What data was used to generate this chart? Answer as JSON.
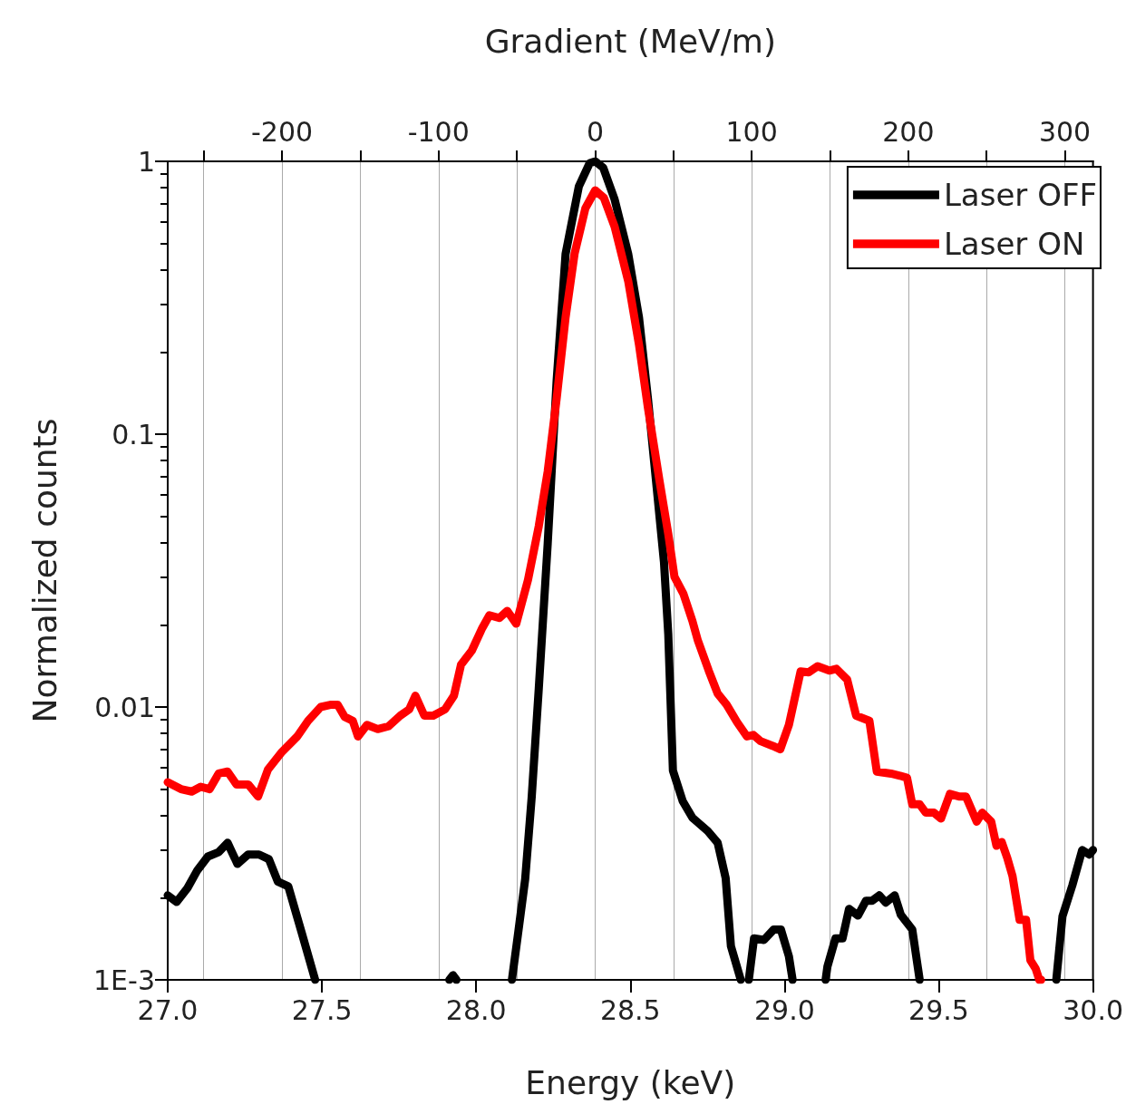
{
  "chart_data": {
    "type": "line",
    "xlabel": "Energy (keV)",
    "ylabel": "Normalized counts",
    "x2label": "Gradient (MeV/m)",
    "xlim": [
      27,
      30
    ],
    "xticks": [
      {
        "value": 27,
        "label": "27.0"
      },
      {
        "value": 27.5,
        "label": "27.5"
      },
      {
        "value": 28,
        "label": "28.0"
      },
      {
        "value": 28.5,
        "label": "28.5"
      },
      {
        "value": 29,
        "label": "29.0"
      },
      {
        "value": 29.5,
        "label": "29.5"
      },
      {
        "value": 30,
        "label": "30.0"
      }
    ],
    "x2lim": [
      -273,
      318
    ],
    "x2ticks": [
      {
        "value": -250,
        "label": null
      },
      -200,
      {
        "value": -150,
        "label": null
      },
      -100,
      {
        "value": -50,
        "label": null
      },
      0,
      {
        "value": 50,
        "label": null
      },
      100,
      {
        "value": 150,
        "label": null
      },
      200,
      {
        "value": 250,
        "label": null
      },
      300
    ],
    "ylim": [
      0.001,
      1
    ],
    "yticks": [
      {
        "value": 0.001,
        "label": "1E-3"
      },
      0.01,
      0.1,
      1
    ],
    "log": "y",
    "grid": "x",
    "legend": "top right",
    "line_style": "solid",
    "marker": "none",
    "series": [
      {
        "name": "Laser OFF",
        "color": "#000000",
        "x": [
          27.0,
          27.029,
          27.064,
          27.096,
          27.13,
          27.165,
          27.194,
          27.226,
          27.261,
          27.296,
          27.328,
          27.357,
          27.391,
          27.435,
          27.478,
          27.7,
          27.913,
          27.925,
          27.936,
          28.0,
          28.116,
          28.136,
          28.159,
          28.18,
          28.203,
          28.232,
          28.261,
          28.29,
          28.333,
          28.368,
          28.386,
          28.412,
          28.449,
          28.493,
          28.528,
          28.557,
          28.586,
          28.609,
          28.623,
          28.638,
          28.67,
          28.701,
          28.751,
          28.783,
          28.809,
          28.826,
          28.858,
          28.87,
          28.884,
          28.901,
          28.933,
          28.965,
          28.988,
          29.014,
          29.026,
          29.08,
          29.133,
          29.139,
          29.165,
          29.188,
          29.209,
          29.238,
          29.264,
          29.284,
          29.307,
          29.328,
          29.357,
          29.377,
          29.414,
          29.438,
          29.6,
          29.881,
          29.901,
          29.933,
          29.965,
          29.988,
          30.0
        ],
        "values": [
          0.00204,
          0.00193,
          0.00217,
          0.00252,
          0.00283,
          0.00294,
          0.00318,
          0.00266,
          0.00288,
          0.00288,
          0.00277,
          0.00229,
          0.0022,
          0.00148,
          0.001,
          null,
          0.001,
          0.00104,
          0.001,
          null,
          0.001,
          0.00148,
          0.00234,
          0.00466,
          0.01165,
          0.0397,
          0.157,
          0.458,
          0.81,
          0.985,
          1.0,
          0.948,
          0.725,
          0.458,
          0.268,
          0.135,
          0.0627,
          0.034,
          0.0184,
          0.00585,
          0.00451,
          0.00393,
          0.00351,
          0.00318,
          0.00236,
          0.00133,
          0.001,
          null,
          0.001,
          0.00142,
          0.0014,
          0.00153,
          0.00153,
          0.00122,
          0.001,
          null,
          0.001,
          0.00112,
          0.00142,
          0.00142,
          0.00182,
          0.00172,
          0.00195,
          0.00195,
          0.00204,
          0.00192,
          0.00204,
          0.00173,
          0.00153,
          0.001,
          null,
          0.001,
          0.00171,
          0.00222,
          0.00299,
          0.00288,
          0.00299
        ]
      },
      {
        "name": "Laser ON",
        "color": "#ff0000",
        "x": [
          27.0,
          27.043,
          27.078,
          27.107,
          27.136,
          27.165,
          27.194,
          27.223,
          27.261,
          27.293,
          27.325,
          27.368,
          27.42,
          27.455,
          27.496,
          27.53,
          27.551,
          27.574,
          27.6,
          27.617,
          27.646,
          27.681,
          27.716,
          27.754,
          27.783,
          27.803,
          27.832,
          27.861,
          27.899,
          27.928,
          27.951,
          27.986,
          28.02,
          28.043,
          28.075,
          28.101,
          28.13,
          28.168,
          28.203,
          28.232,
          28.261,
          28.29,
          28.319,
          28.354,
          28.386,
          28.414,
          28.449,
          28.493,
          28.528,
          28.557,
          28.594,
          28.623,
          28.643,
          28.672,
          28.701,
          28.719,
          28.754,
          28.783,
          28.812,
          28.846,
          28.878,
          28.899,
          28.922,
          28.962,
          28.986,
          29.014,
          29.052,
          29.078,
          29.107,
          29.145,
          29.168,
          29.203,
          29.232,
          29.275,
          29.299,
          29.345,
          29.374,
          29.397,
          29.414,
          29.438,
          29.458,
          29.484,
          29.507,
          29.536,
          29.565,
          29.588,
          29.623,
          29.641,
          29.67,
          29.687,
          29.704,
          29.722,
          29.739,
          29.762,
          29.783,
          29.797,
          29.814,
          29.826,
          29.832
        ],
        "values": [
          0.0053,
          0.005,
          0.0049,
          0.0051,
          0.005,
          0.0057,
          0.0058,
          0.0052,
          0.0052,
          0.0047,
          0.0059,
          0.0068,
          0.0078,
          0.0089,
          0.01,
          0.0102,
          0.0102,
          0.0092,
          0.0089,
          0.0078,
          0.0086,
          0.0083,
          0.0085,
          0.0093,
          0.0098,
          0.011,
          0.0093,
          0.0093,
          0.0098,
          0.011,
          0.0143,
          0.0161,
          0.0195,
          0.0217,
          0.0212,
          0.0225,
          0.0202,
          0.0292,
          0.046,
          0.073,
          0.135,
          0.268,
          0.458,
          0.672,
          0.783,
          0.736,
          0.576,
          0.364,
          0.213,
          0.125,
          0.068,
          0.043,
          0.03,
          0.026,
          0.0207,
          0.0175,
          0.0136,
          0.0112,
          0.0102,
          0.0088,
          0.0078,
          0.0079,
          0.0075,
          0.0072,
          0.007,
          0.0086,
          0.0135,
          0.0134,
          0.0141,
          0.0136,
          0.0138,
          0.0126,
          0.0093,
          0.0089,
          0.0058,
          0.0057,
          0.0056,
          0.0055,
          0.0044,
          0.0044,
          0.0041,
          0.0041,
          0.0039,
          0.0048,
          0.0047,
          0.0047,
          0.0038,
          0.0041,
          0.0038,
          0.0031,
          0.0032,
          0.0028,
          0.0024,
          0.00166,
          0.00166,
          0.00118,
          0.0011,
          0.001,
          0.001
        ]
      }
    ]
  }
}
